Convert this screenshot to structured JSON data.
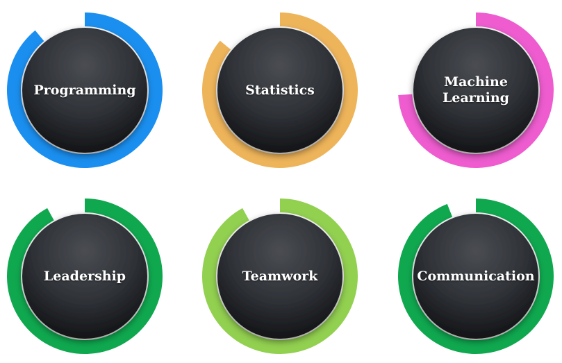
{
  "skills": [
    {
      "label": "Programming",
      "color": "#1a8ff0",
      "progress": 0.89
    },
    {
      "label": "Statistics",
      "color": "#eeb45a",
      "progress": 0.86
    },
    {
      "label": "Machine\nLearning",
      "color": "#ee5ccf",
      "progress": 0.74
    },
    {
      "label": "Leadership",
      "color": "#0fa84f",
      "progress": 0.92
    },
    {
      "label": "Teamwork",
      "color": "#92d050",
      "progress": 0.92
    },
    {
      "label": "Communication",
      "color": "#0fa84f",
      "progress": 0.94
    }
  ]
}
